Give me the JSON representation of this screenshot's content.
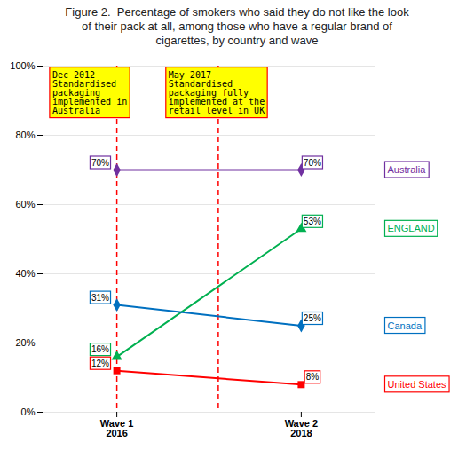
{
  "chart_data": {
    "type": "line",
    "title": "Figure 2.  Percentage of smokers who said they do not like the look\nof their pack at all, among those who have a regular brand of\ncigarettes, by country and wave",
    "categories": [
      "Wave 1\n2016",
      "Wave 2\n2018"
    ],
    "series": [
      {
        "name": "Australia",
        "color": "#7030A0",
        "marker": "diamond",
        "values": [
          70,
          70
        ],
        "value_labels": [
          "70%",
          "70%"
        ]
      },
      {
        "name": "ENGLAND",
        "color": "#00B050",
        "marker": "triangle",
        "values": [
          16,
          53
        ],
        "value_labels": [
          "16%",
          "53%"
        ]
      },
      {
        "name": "Canada",
        "color": "#0070C0",
        "marker": "diamond",
        "values": [
          31,
          25
        ],
        "value_labels": [
          "31%",
          "25%"
        ]
      },
      {
        "name": "United States",
        "color": "#FF0000",
        "marker": "square",
        "values": [
          12,
          8
        ],
        "value_labels": [
          "12%",
          "8%"
        ]
      }
    ],
    "ylim": [
      0,
      100
    ],
    "yticks": [
      {
        "value": 0,
        "label": "0%"
      },
      {
        "value": 20,
        "label": "20%"
      },
      {
        "value": 40,
        "label": "40%"
      },
      {
        "value": 60,
        "label": "60%"
      },
      {
        "value": 80,
        "label": "80%"
      },
      {
        "value": 100,
        "label": "100%"
      }
    ],
    "grid": true,
    "legend": "right",
    "data_labels": true,
    "annotations": [
      "Dec 2012\nStandardised\npackaging\nimplemented in\nAustralia",
      "May 2017\nStandardised\npackaging fully\nimplemented at the\nretail level in UK"
    ]
  }
}
